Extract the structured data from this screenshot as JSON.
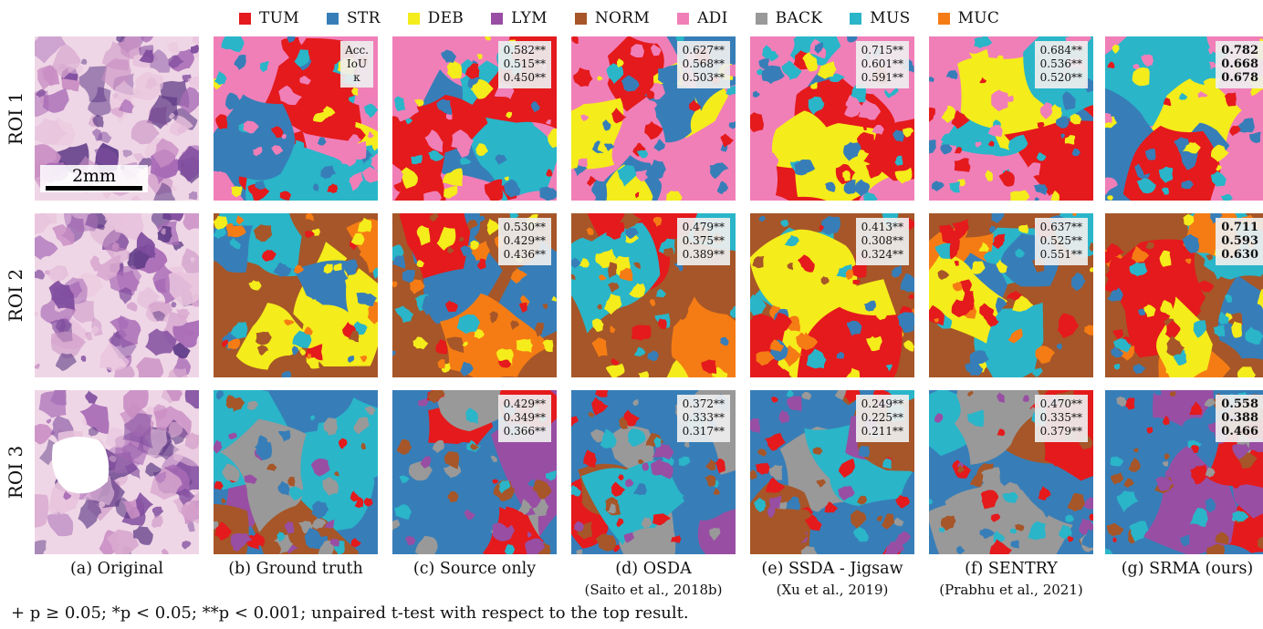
{
  "legend": [
    {
      "label": "TUM",
      "color": "#e41a1c"
    },
    {
      "label": "STR",
      "color": "#377eb8"
    },
    {
      "label": "DEB",
      "color": "#f5ec1b"
    },
    {
      "label": "LYM",
      "color": "#984ea3"
    },
    {
      "label": "NORM",
      "color": "#a65628"
    },
    {
      "label": "ADI",
      "color": "#f07fb8"
    },
    {
      "label": "BACK",
      "color": "#999999"
    },
    {
      "label": "MUS",
      "color": "#2ab5c9"
    },
    {
      "label": "MUC",
      "color": "#f57c14"
    }
  ],
  "rows": [
    {
      "label": "ROI 1"
    },
    {
      "label": "ROI 2"
    },
    {
      "label": "ROI 3"
    }
  ],
  "scale_bar": "2mm",
  "metric_keys": {
    "acc": "Acc.",
    "iou": "IoU",
    "kappa": "κ"
  },
  "columns": [
    {
      "caption": "(a) Original",
      "sub": ""
    },
    {
      "caption": "(b) Ground truth",
      "sub": ""
    },
    {
      "caption": "(c) Source only",
      "sub": ""
    },
    {
      "caption": "(d) OSDA",
      "sub": "(Saito et al., 2018b)"
    },
    {
      "caption": "(e) SSDA - Jigsaw",
      "sub": "(Xu et al., 2019)"
    },
    {
      "caption": "(f) SENTRY",
      "sub": "(Prabhu et al., 2021)"
    },
    {
      "caption": "(g) SRMA (ours)",
      "sub": ""
    }
  ],
  "metrics": [
    [
      [
        "0.582**",
        "0.515**",
        "0.450**"
      ],
      [
        "0.627**",
        "0.568**",
        "0.503**"
      ],
      [
        "0.715**",
        "0.601**",
        "0.591**"
      ],
      [
        "0.684**",
        "0.536**",
        "0.520**"
      ],
      [
        "0.782",
        "0.668",
        "0.678"
      ]
    ],
    [
      [
        "0.530**",
        "0.429**",
        "0.436**"
      ],
      [
        "0.479**",
        "0.375**",
        "0.389**"
      ],
      [
        "0.413**",
        "0.308**",
        "0.324**"
      ],
      [
        "0.637**",
        "0.525**",
        "0.551**"
      ],
      [
        "0.711",
        "0.593",
        "0.630"
      ]
    ],
    [
      [
        "0.429**",
        "0.349**",
        "0.366**"
      ],
      [
        "0.372**",
        "0.333**",
        "0.317**"
      ],
      [
        "0.249**",
        "0.225**",
        "0.211**"
      ],
      [
        "0.470**",
        "0.335**",
        "0.379**"
      ],
      [
        "0.558",
        "0.388",
        "0.466"
      ]
    ]
  ],
  "tile_colors": [
    [
      "ADI",
      "STR",
      "TUM",
      "MUS",
      "DEB"
    ],
    [
      "NORM",
      "MUS",
      "MUC",
      "STR",
      "DEB",
      "TUM"
    ],
    [
      "STR",
      "LYM",
      "TUM",
      "BACK",
      "NORM",
      "MUS"
    ]
  ],
  "footnote": "+ p ≥ 0.05; *p < 0.05; **p < 0.001; unpaired t-test with respect to the top result."
}
